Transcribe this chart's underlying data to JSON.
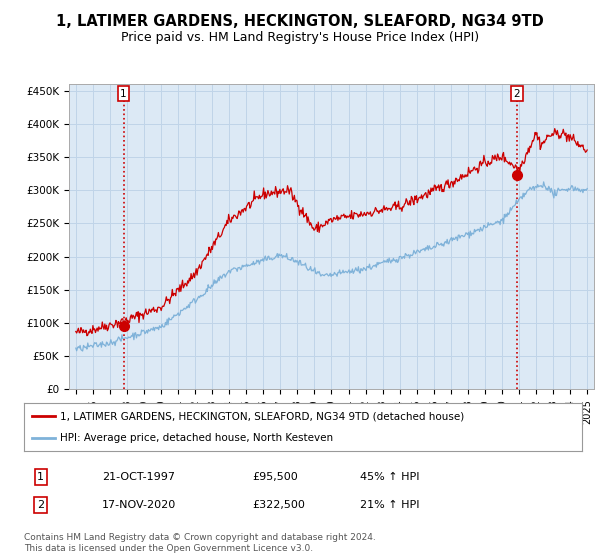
{
  "title": "1, LATIMER GARDENS, HECKINGTON, SLEAFORD, NG34 9TD",
  "subtitle": "Price paid vs. HM Land Registry's House Price Index (HPI)",
  "title_fontsize": 10.5,
  "subtitle_fontsize": 9,
  "ylabel_ticks": [
    "£0",
    "£50K",
    "£100K",
    "£150K",
    "£200K",
    "£250K",
    "£300K",
    "£350K",
    "£400K",
    "£450K"
  ],
  "ylabel_values": [
    0,
    50000,
    100000,
    150000,
    200000,
    250000,
    300000,
    350000,
    400000,
    450000
  ],
  "ylim": [
    0,
    460000
  ],
  "xlim_start": 1994.6,
  "xlim_end": 2025.4,
  "xtick_years": [
    1995,
    1996,
    1997,
    1998,
    1999,
    2000,
    2001,
    2002,
    2003,
    2004,
    2005,
    2006,
    2007,
    2008,
    2009,
    2010,
    2011,
    2012,
    2013,
    2014,
    2015,
    2016,
    2017,
    2018,
    2019,
    2020,
    2021,
    2022,
    2023,
    2024,
    2025
  ],
  "red_line_color": "#cc0000",
  "blue_line_color": "#7fb2d9",
  "plot_bg_color": "#dce9f5",
  "marker_color": "#cc0000",
  "sale1_year": 1997.8,
  "sale1_price": 95500,
  "sale1_label": "1",
  "sale1_vline_x": 1997.8,
  "sale2_year": 2020.88,
  "sale2_price": 322500,
  "sale2_label": "2",
  "sale2_vline_x": 2020.88,
  "legend_line1": "1, LATIMER GARDENS, HECKINGTON, SLEAFORD, NG34 9TD (detached house)",
  "legend_line2": "HPI: Average price, detached house, North Kesteven",
  "table_row1_num": "1",
  "table_row1_date": "21-OCT-1997",
  "table_row1_price": "£95,500",
  "table_row1_hpi": "45% ↑ HPI",
  "table_row2_num": "2",
  "table_row2_date": "17-NOV-2020",
  "table_row2_price": "£322,500",
  "table_row2_hpi": "21% ↑ HPI",
  "footnote": "Contains HM Land Registry data © Crown copyright and database right 2024.\nThis data is licensed under the Open Government Licence v3.0.",
  "background_color": "#ffffff",
  "grid_color": "#c0d4e8"
}
